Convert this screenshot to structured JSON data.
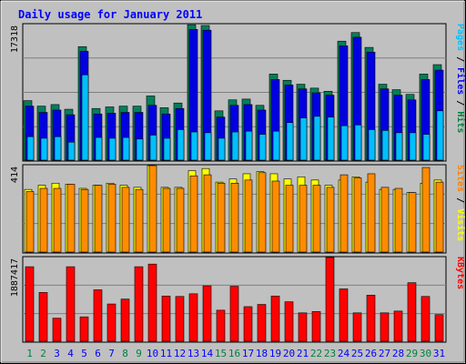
{
  "chart_data": {
    "type": "bar",
    "title": "Daily usage for January 2011",
    "categories": [
      "1",
      "2",
      "3",
      "4",
      "5",
      "6",
      "7",
      "8",
      "9",
      "10",
      "11",
      "12",
      "13",
      "14",
      "15",
      "16",
      "17",
      "18",
      "19",
      "20",
      "21",
      "22",
      "23",
      "24",
      "25",
      "26",
      "27",
      "28",
      "29",
      "30",
      "31"
    ],
    "weekend_days": [
      "1",
      "2",
      "8",
      "9",
      "15",
      "16",
      "22",
      "23",
      "29",
      "30"
    ],
    "panels": [
      {
        "id": "top",
        "max_label": "17318",
        "ylim": [
          0,
          17318
        ],
        "legend": [
          {
            "text": "Pages",
            "color": "#00C0FF"
          },
          {
            "text": " / ",
            "color": "#000000"
          },
          {
            "text": "Files",
            "color": "#0000FF"
          },
          {
            "text": " / ",
            "color": "#000000"
          },
          {
            "text": "Hits",
            "color": "#008040"
          }
        ],
        "series": [
          {
            "name": "Hits",
            "color": "#00805C",
            "values": [
              7600,
              6900,
              7100,
              6500,
              14500,
              6600,
              6800,
              6900,
              6900,
              8200,
              6700,
              7300,
              17300,
              17200,
              6300,
              7700,
              7800,
              7000,
              11000,
              10200,
              9700,
              9200,
              8800,
              15200,
              16300,
              14400,
              9700,
              9000,
              8400,
              11000,
              12200
            ]
          },
          {
            "name": "Files",
            "color": "#0000E0",
            "values": [
              6900,
              6100,
              6400,
              5800,
              13900,
              5900,
              6000,
              6100,
              6100,
              7000,
              5900,
              6600,
              16700,
              16600,
              5500,
              7000,
              7100,
              6400,
              10300,
              9600,
              9100,
              8600,
              8300,
              14600,
              15700,
              13800,
              9100,
              8300,
              7700,
              10300,
              11500
            ]
          },
          {
            "name": "Pages",
            "color": "#00BFFF",
            "values": [
              3000,
              2800,
              3000,
              2300,
              10900,
              2900,
              2800,
              2900,
              2700,
              3200,
              2800,
              3900,
              3600,
              3500,
              2800,
              3600,
              3700,
              3300,
              3700,
              4800,
              5400,
              5600,
              5500,
              4400,
              4500,
              3900,
              3800,
              3500,
              3500,
              3300,
              6300
            ]
          }
        ]
      },
      {
        "id": "middle",
        "max_label": "414",
        "ylim": [
          0,
          414
        ],
        "legend": [
          {
            "text": "Sites",
            "color": "#FF8000"
          },
          {
            "text": " / ",
            "color": "#000000"
          },
          {
            "text": "Visits",
            "color": "#FFFF00"
          }
        ],
        "series": [
          {
            "name": "Visits",
            "color": "#FFFF00",
            "values": [
              300,
              320,
              330,
              325,
              305,
              320,
              330,
              320,
              310,
              414,
              310,
              310,
              390,
              400,
              335,
              350,
              375,
              385,
              375,
              350,
              360,
              345,
              320,
              345,
              360,
              335,
              300,
              300,
              285,
              330,
              345
            ]
          },
          {
            "name": "Sites",
            "color": "#FF8C00",
            "values": [
              290,
              305,
              305,
              325,
              300,
              320,
              325,
              310,
              300,
              414,
              305,
              305,
              365,
              370,
              330,
              330,
              345,
              380,
              340,
              320,
              320,
              320,
              310,
              370,
              355,
              375,
              310,
              305,
              285,
              405,
              335
            ]
          }
        ]
      },
      {
        "id": "bottom",
        "max_label": "1887417",
        "ylim": [
          0,
          1887417
        ],
        "legend": [
          {
            "text": "KBytes",
            "color": "#FF0000"
          }
        ],
        "series": [
          {
            "name": "KBytes",
            "color": "#FF0000",
            "values": [
              1680000,
              1100000,
              520000,
              1680000,
              550000,
              1160000,
              840000,
              950000,
              1680000,
              1740000,
              1020000,
              1010000,
              1070000,
              1250000,
              700000,
              1240000,
              780000,
              830000,
              1020000,
              890000,
              640000,
              670000,
              1890000,
              1180000,
              640000,
              1040000,
              640000,
              680000,
              1320000,
              1010000,
              600000
            ]
          }
        ]
      }
    ],
    "colors": {
      "background": "#C0C0C0",
      "title": "#0000FF",
      "weekday_label": "#0000FF",
      "weekend_label": "#008040"
    }
  }
}
